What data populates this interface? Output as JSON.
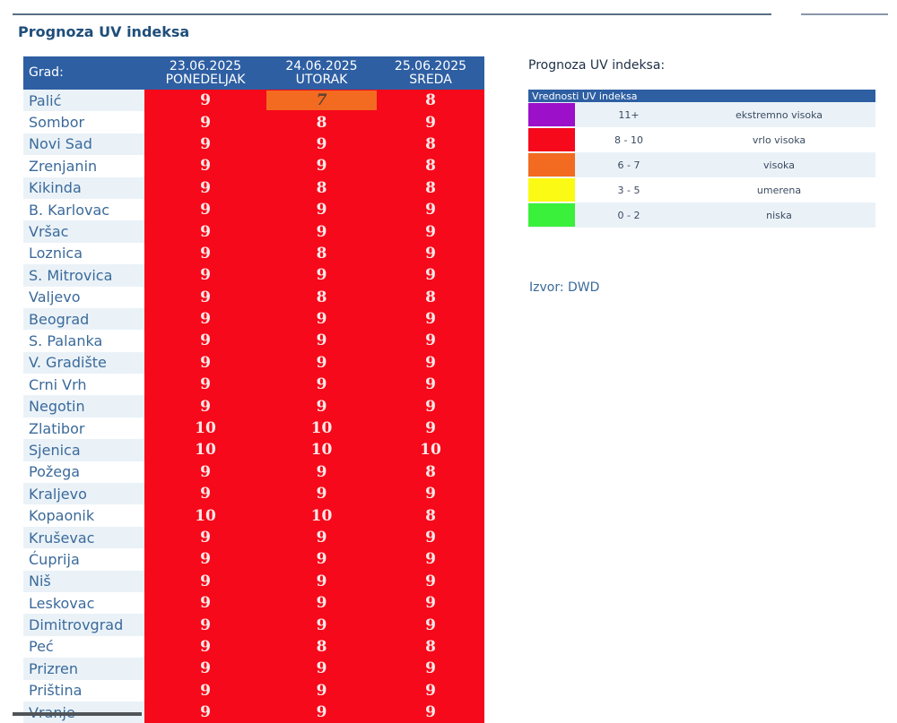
{
  "page": {
    "title": "Prognoza UV indeksa"
  },
  "table": {
    "city_header": "Grad:",
    "days": [
      {
        "date": "23.06.2025",
        "weekday": "PONEDELJAK"
      },
      {
        "date": "24.06.2025",
        "weekday": "UTORAK"
      },
      {
        "date": "25.06.2025",
        "weekday": "SREDA"
      }
    ],
    "rows": [
      {
        "city": "Palić",
        "values": [
          "9",
          "7",
          "8"
        ]
      },
      {
        "city": "Sombor",
        "values": [
          "9",
          "8",
          "9"
        ]
      },
      {
        "city": "Novi Sad",
        "values": [
          "9",
          "9",
          "8"
        ]
      },
      {
        "city": "Zrenjanin",
        "values": [
          "9",
          "9",
          "8"
        ]
      },
      {
        "city": "Kikinda",
        "values": [
          "9",
          "8",
          "8"
        ]
      },
      {
        "city": "B. Karlovac",
        "values": [
          "9",
          "9",
          "9"
        ]
      },
      {
        "city": "Vršac",
        "values": [
          "9",
          "9",
          "9"
        ]
      },
      {
        "city": "Loznica",
        "values": [
          "9",
          "8",
          "9"
        ]
      },
      {
        "city": "S. Mitrovica",
        "values": [
          "9",
          "9",
          "9"
        ]
      },
      {
        "city": "Valjevo",
        "values": [
          "9",
          "8",
          "8"
        ]
      },
      {
        "city": "Beograd",
        "values": [
          "9",
          "9",
          "9"
        ]
      },
      {
        "city": "S. Palanka",
        "values": [
          "9",
          "9",
          "9"
        ]
      },
      {
        "city": "V. Gradište",
        "values": [
          "9",
          "9",
          "9"
        ]
      },
      {
        "city": "Crni Vrh",
        "values": [
          "9",
          "9",
          "9"
        ]
      },
      {
        "city": "Negotin",
        "values": [
          "9",
          "9",
          "9"
        ]
      },
      {
        "city": "Zlatibor",
        "values": [
          "10",
          "10",
          "9"
        ]
      },
      {
        "city": "Sjenica",
        "values": [
          "10",
          "10",
          "10"
        ]
      },
      {
        "city": "Požega",
        "values": [
          "9",
          "9",
          "8"
        ]
      },
      {
        "city": "Kraljevo",
        "values": [
          "9",
          "9",
          "9"
        ]
      },
      {
        "city": "Kopaonik",
        "values": [
          "10",
          "10",
          "8"
        ]
      },
      {
        "city": "Kruševac",
        "values": [
          "9",
          "9",
          "9"
        ]
      },
      {
        "city": "Ćuprija",
        "values": [
          "9",
          "9",
          "9"
        ]
      },
      {
        "city": "Niš",
        "values": [
          "9",
          "9",
          "9"
        ]
      },
      {
        "city": "Leskovac",
        "values": [
          "9",
          "9",
          "9"
        ]
      },
      {
        "city": "Dimitrovgrad",
        "values": [
          "9",
          "9",
          "9"
        ]
      },
      {
        "city": "Peć",
        "values": [
          "9",
          "8",
          "8"
        ]
      },
      {
        "city": "Prizren",
        "values": [
          "9",
          "9",
          "9"
        ]
      },
      {
        "city": "Priština",
        "values": [
          "9",
          "9",
          "9"
        ]
      },
      {
        "city": "Vranje",
        "values": [
          "9",
          "9",
          "9"
        ]
      }
    ]
  },
  "legend": {
    "title": "Prognoza UV indeksa:",
    "header": "Vrednosti UV indeksa",
    "items": [
      {
        "color": "#9b10c8",
        "range": "11+",
        "label": "ekstremno visoka"
      },
      {
        "color": "#f5091a",
        "range": "8 - 10",
        "label": "vrlo visoka"
      },
      {
        "color": "#f26b21",
        "range": "6 - 7",
        "label": "visoka"
      },
      {
        "color": "#fafa14",
        "range": "3 - 5",
        "label": "umerena"
      },
      {
        "color": "#3af03a",
        "range": "0 - 2",
        "label": "niska"
      }
    ]
  },
  "source": "Izvor: DWD",
  "colors": {
    "very_high": "#f5091a",
    "high": "#f26b21",
    "header_blue": "#2e5fa3",
    "title_blue": "#1f4e7a"
  }
}
